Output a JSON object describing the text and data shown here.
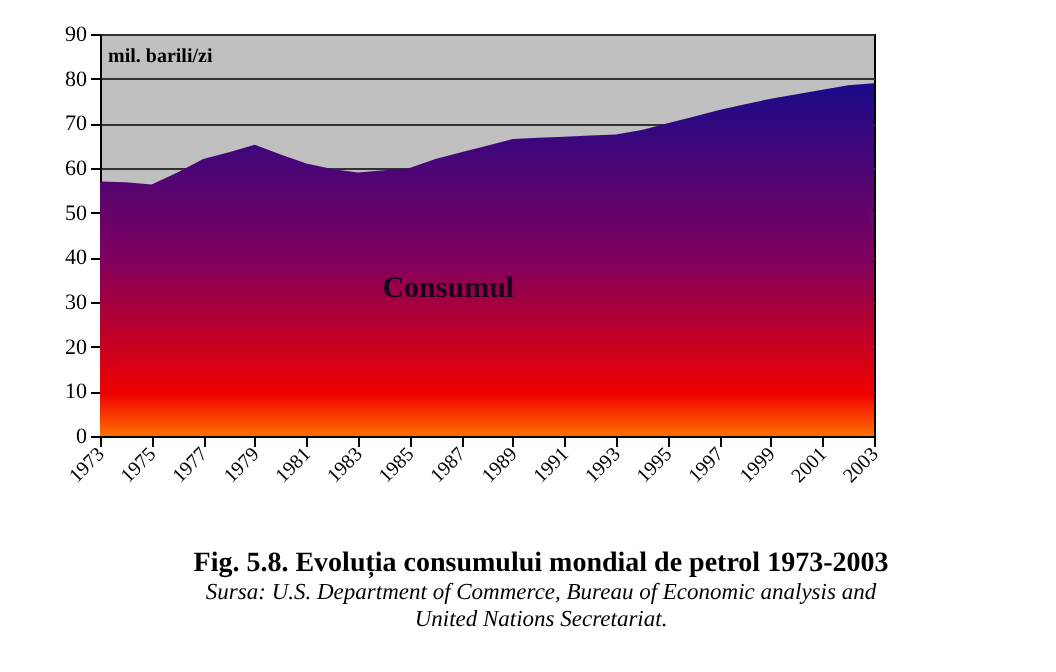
{
  "chart_data": {
    "type": "area",
    "title": "Fig. 5.8. Evoluția consumului mondial de petrol 1973-2003",
    "ylabel": "mil. barili/zi",
    "annotations": [
      "Sursa: U.S. Department of Commerce, Bureau of Economic analysis and United Nations Secretariat."
    ],
    "x": [
      1973,
      1974,
      1975,
      1976,
      1977,
      1978,
      1979,
      1980,
      1981,
      1982,
      1983,
      1984,
      1985,
      1986,
      1987,
      1988,
      1989,
      1990,
      1991,
      1992,
      1993,
      1994,
      1995,
      1996,
      1997,
      1998,
      1999,
      2000,
      2001,
      2002,
      2003
    ],
    "series": [
      {
        "name": "Consumul",
        "color": "#1a0a8a",
        "values": [
          57,
          56.8,
          56.3,
          59,
          62,
          63.5,
          65.2,
          63,
          61,
          59.8,
          59,
          59.5,
          60,
          62,
          63.5,
          65,
          66.5,
          66.8,
          67,
          67.3,
          67.5,
          68.5,
          70,
          71.5,
          73,
          74.3,
          75.5,
          76.5,
          77.5,
          78.5,
          79
        ]
      }
    ],
    "xlim": [
      1973,
      2003
    ],
    "xticks": [
      1973,
      1975,
      1977,
      1979,
      1981,
      1983,
      1985,
      1987,
      1989,
      1991,
      1993,
      1995,
      1997,
      1999,
      2001,
      2003
    ],
    "ylim": [
      0,
      90
    ],
    "yticks": [
      0,
      10,
      20,
      30,
      40,
      50,
      60,
      70,
      80,
      90
    ],
    "grid": "y"
  }
}
